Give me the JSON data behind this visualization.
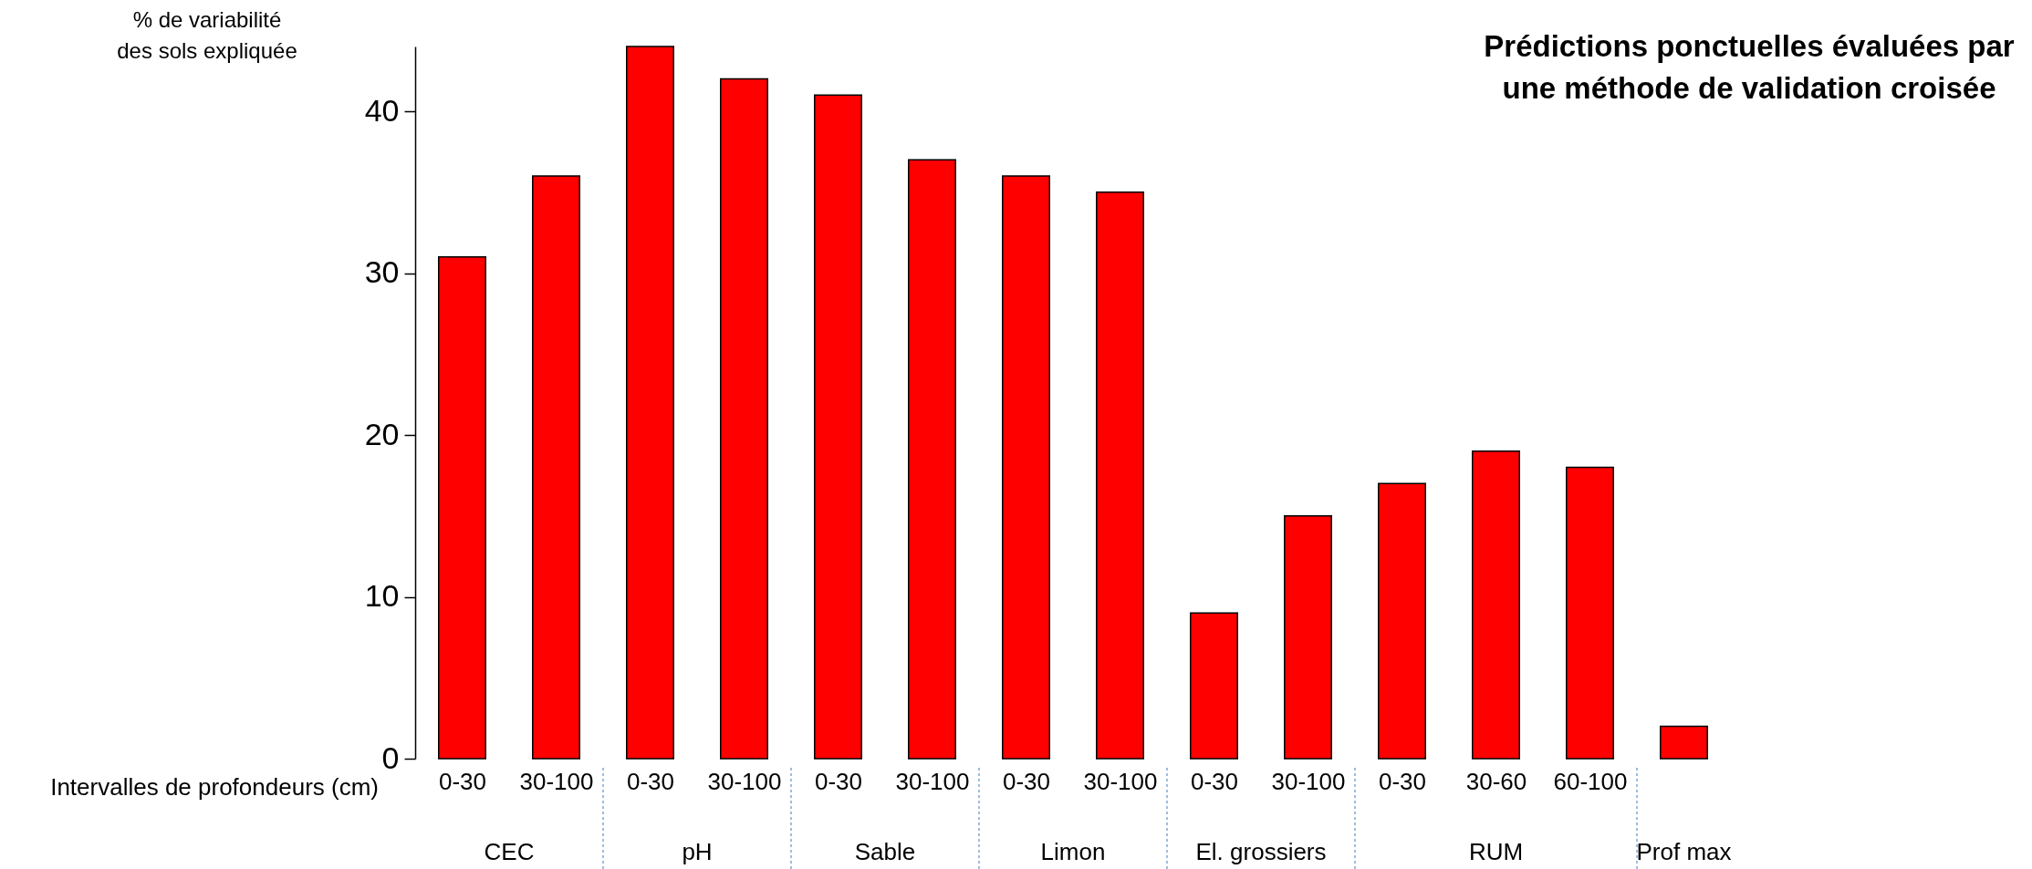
{
  "chart_data": {
    "type": "bar",
    "title": "Prédictions ponctuelles évaluées par une méthode de validation croisée",
    "ylabel": "% de variabilité des sols expliquée",
    "xlabel": "Intervalles de profondeurs (cm)",
    "categories": [
      "0-30",
      "30-100",
      "0-30",
      "30-100",
      "0-30",
      "30-100",
      "0-30",
      "30-100",
      "0-30",
      "30-100",
      "0-30",
      "30-60",
      "60-100",
      null
    ],
    "values": [
      31,
      36,
      44,
      42,
      41,
      37,
      36,
      35,
      9,
      15,
      17,
      19,
      18,
      2
    ],
    "color": "#ff0000",
    "ylim": [
      0,
      44
    ],
    "yticks": [
      0,
      10,
      20,
      30,
      40
    ],
    "annotations": [
      "CEC",
      "pH",
      "Sable",
      "Limon",
      "El. grossiers",
      "RUM",
      "Prof max"
    ]
  }
}
